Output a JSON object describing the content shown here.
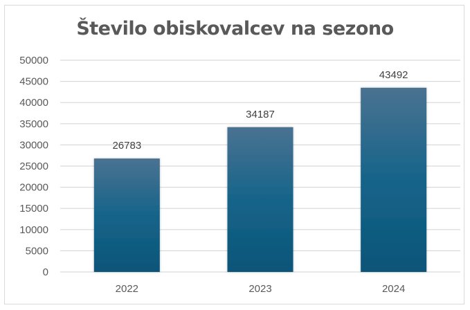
{
  "chart_data": {
    "type": "bar",
    "title": "Število obiskovalcev na sezono",
    "categories": [
      "2022",
      "2023",
      "2024"
    ],
    "values": [
      26783,
      34187,
      43492
    ],
    "data_labels": [
      "26783",
      "34187",
      "43492"
    ],
    "xlabel": "",
    "ylabel": "",
    "ylim": [
      0,
      50000
    ],
    "yticks": [
      "0",
      "5000",
      "10000",
      "15000",
      "20000",
      "25000",
      "30000",
      "35000",
      "40000",
      "45000",
      "50000"
    ],
    "grid": true,
    "legend": "none",
    "colors": {
      "bar_top": "#4a7291",
      "bar_bottom": "#0b5578",
      "grid": "#d9d9d9",
      "text": "#595959"
    }
  }
}
